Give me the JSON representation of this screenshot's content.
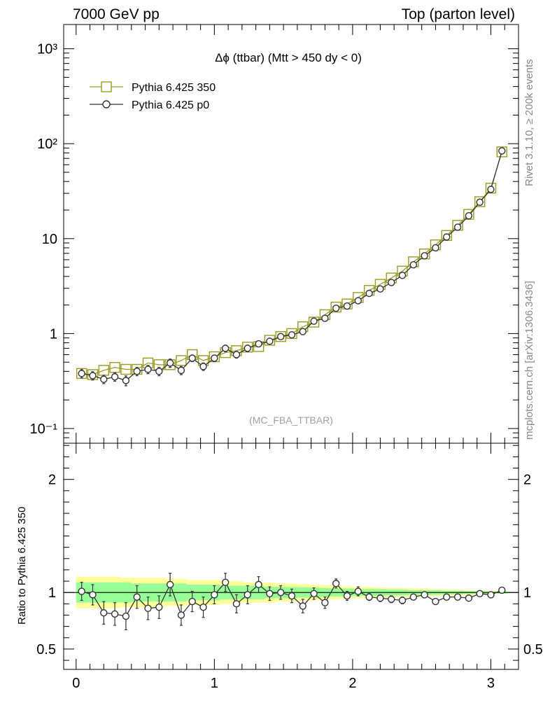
{
  "header": {
    "left": "7000 GeV pp",
    "right": "Top (parton level)"
  },
  "side_labels": {
    "rivet": "Rivet 3.1.10, ≥ 200k events",
    "mcplots": "mcplots.cern.ch [arXiv:1306.3436]"
  },
  "chart_data": [
    {
      "type": "line",
      "title": "Δϕ (ttbar) (Mtt > 450 dy < 0)",
      "watermark": "(MC_FBA_TTBAR)",
      "xlabel": "",
      "ylabel": "",
      "yscale": "log",
      "xlim": [
        -0.09,
        3.2
      ],
      "ylim": [
        0.07,
        1800
      ],
      "y_ticks": [
        {
          "value": 0.1,
          "label": "10⁻¹"
        },
        {
          "value": 1,
          "label": "1"
        },
        {
          "value": 10,
          "label": "10"
        },
        {
          "value": 100,
          "label": "10²"
        },
        {
          "value": 1000,
          "label": "10³"
        }
      ],
      "legend_position": "top-left",
      "x": [
        0.04,
        0.12,
        0.2,
        0.28,
        0.36,
        0.44,
        0.52,
        0.6,
        0.68,
        0.76,
        0.84,
        0.92,
        1.0,
        1.08,
        1.16,
        1.24,
        1.32,
        1.4,
        1.48,
        1.56,
        1.64,
        1.72,
        1.8,
        1.88,
        1.96,
        2.04,
        2.12,
        2.2,
        2.28,
        2.36,
        2.44,
        2.52,
        2.6,
        2.68,
        2.76,
        2.84,
        2.92,
        3.0,
        3.08
      ],
      "series": [
        {
          "name": "Pythia 6.425 350",
          "color": "#9a9a20",
          "marker": "square",
          "values": [
            0.38,
            0.37,
            0.41,
            0.44,
            0.42,
            0.42,
            0.49,
            0.47,
            0.47,
            0.52,
            0.6,
            0.52,
            0.57,
            0.63,
            0.66,
            0.72,
            0.73,
            0.85,
            0.93,
            1.0,
            1.18,
            1.32,
            1.58,
            1.9,
            2.05,
            2.4,
            2.85,
            3.3,
            3.85,
            4.55,
            5.7,
            6.9,
            8.6,
            10.8,
            13.8,
            18.0,
            24.5,
            34.0,
            82.0
          ]
        },
        {
          "name": "Pythia 6.425 p0",
          "color": "#333333",
          "marker": "circle",
          "values": [
            0.38,
            0.36,
            0.33,
            0.35,
            0.32,
            0.4,
            0.42,
            0.4,
            0.49,
            0.41,
            0.55,
            0.45,
            0.55,
            0.7,
            0.6,
            0.7,
            0.78,
            0.83,
            0.93,
            0.97,
            1.05,
            1.35,
            1.45,
            1.85,
            1.95,
            2.22,
            2.65,
            2.95,
            3.45,
            4.1,
            5.3,
            6.6,
            8.0,
            10.4,
            13.2,
            17.4,
            24.2,
            33.0,
            84.0
          ],
          "yerr_rel": [
            0.1,
            0.1,
            0.1,
            0.1,
            0.12,
            0.1,
            0.1,
            0.1,
            0.1,
            0.1,
            0.08,
            0.09,
            0.08,
            0.08,
            0.08,
            0.08,
            0.07,
            0.06,
            0.06,
            0.06,
            0.06,
            0.05,
            0.05,
            0.04,
            0.04,
            0.04,
            0.04,
            0.03,
            0.03,
            0.03,
            0.03,
            0.03,
            0.03,
            0.03,
            0.03,
            0.02,
            0.02,
            0.02,
            0.02
          ]
        }
      ]
    },
    {
      "type": "line",
      "ylabel": "Ratio to Pythia 6.425 350",
      "xlabel": "",
      "xlim": [
        -0.09,
        3.2
      ],
      "ylim": [
        0.32,
        2.32
      ],
      "x_ticks": [
        0,
        1,
        2,
        3
      ],
      "y_ticks": [
        0.5,
        1,
        2
      ],
      "x": [
        0.04,
        0.12,
        0.2,
        0.28,
        0.36,
        0.44,
        0.52,
        0.6,
        0.68,
        0.76,
        0.84,
        0.92,
        1.0,
        1.08,
        1.16,
        1.24,
        1.32,
        1.4,
        1.48,
        1.56,
        1.64,
        1.72,
        1.8,
        1.88,
        1.96,
        2.04,
        2.12,
        2.2,
        2.28,
        2.36,
        2.44,
        2.52,
        2.6,
        2.68,
        2.76,
        2.84,
        2.92,
        3.0,
        3.08
      ],
      "reference_line": 1,
      "band_inner_halfwidth": [
        0.09,
        0.09,
        0.09,
        0.09,
        0.09,
        0.08,
        0.08,
        0.08,
        0.08,
        0.08,
        0.07,
        0.07,
        0.07,
        0.06,
        0.06,
        0.06,
        0.06,
        0.05,
        0.05,
        0.05,
        0.045,
        0.045,
        0.04,
        0.035,
        0.035,
        0.03,
        0.03,
        0.03,
        0.025,
        0.025,
        0.02,
        0.02,
        0.02,
        0.015,
        0.015,
        0.012,
        0.012,
        0.01,
        0.01
      ],
      "band_outer_halfwidth": [
        0.14,
        0.14,
        0.14,
        0.14,
        0.13,
        0.13,
        0.13,
        0.13,
        0.12,
        0.12,
        0.11,
        0.11,
        0.11,
        0.1,
        0.1,
        0.09,
        0.09,
        0.09,
        0.08,
        0.08,
        0.075,
        0.07,
        0.065,
        0.06,
        0.055,
        0.05,
        0.05,
        0.045,
        0.04,
        0.04,
        0.035,
        0.035,
        0.03,
        0.025,
        0.025,
        0.02,
        0.018,
        0.015,
        0.012
      ],
      "series": [
        {
          "name": "Pythia 6.425 p0",
          "color": "#333333",
          "marker": "circle",
          "values": [
            1.01,
            0.98,
            0.82,
            0.81,
            0.79,
            0.96,
            0.86,
            0.87,
            1.07,
            0.8,
            0.92,
            0.87,
            0.98,
            1.09,
            0.9,
            0.98,
            1.07,
            0.99,
            1.0,
            0.97,
            0.88,
            0.99,
            0.91,
            1.08,
            0.97,
            1.01,
            0.96,
            0.95,
            0.94,
            0.93,
            0.96,
            0.98,
            0.92,
            0.96,
            0.96,
            0.95,
            0.99,
            0.98,
            1.02
          ],
          "yerr": [
            0.08,
            0.09,
            0.1,
            0.1,
            0.12,
            0.1,
            0.1,
            0.1,
            0.1,
            0.09,
            0.09,
            0.09,
            0.08,
            0.08,
            0.08,
            0.08,
            0.07,
            0.06,
            0.06,
            0.06,
            0.06,
            0.05,
            0.05,
            0.04,
            0.04,
            0.04,
            0.03,
            0.03,
            0.03,
            0.03,
            0.02,
            0.02,
            0.02,
            0.015,
            0.015,
            0.012,
            0.012,
            0.01,
            0.01
          ]
        }
      ]
    }
  ]
}
